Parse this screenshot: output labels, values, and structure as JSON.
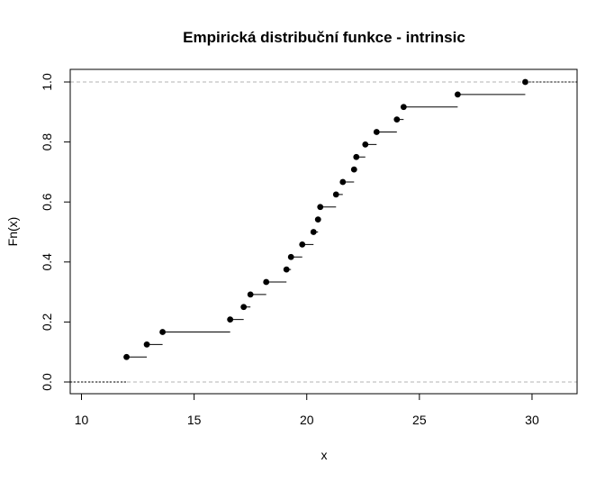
{
  "chart_data": {
    "type": "step",
    "title": "Empirická distribuční funkce - intrinsic",
    "xlabel": "x",
    "ylabel": "Fn(x)",
    "xlim": [
      9.5,
      32
    ],
    "ylim": [
      0,
      1
    ],
    "x_ticks": [
      "10",
      "15",
      "20",
      "25",
      "30"
    ],
    "y_ticks": [
      "0.0",
      "0.2",
      "0.4",
      "0.6",
      "0.8",
      "1.0"
    ],
    "reference_lines": [
      0,
      1
    ],
    "points": [
      {
        "x": 12.0,
        "y": 0.0833
      },
      {
        "x": 12.9,
        "y": 0.125
      },
      {
        "x": 13.6,
        "y": 0.1667
      },
      {
        "x": 16.6,
        "y": 0.2083
      },
      {
        "x": 17.2,
        "y": 0.25
      },
      {
        "x": 17.5,
        "y": 0.2917
      },
      {
        "x": 18.2,
        "y": 0.3333
      },
      {
        "x": 19.1,
        "y": 0.375
      },
      {
        "x": 19.3,
        "y": 0.4167
      },
      {
        "x": 19.8,
        "y": 0.4583
      },
      {
        "x": 20.3,
        "y": 0.5
      },
      {
        "x": 20.5,
        "y": 0.5417
      },
      {
        "x": 20.6,
        "y": 0.5833
      },
      {
        "x": 21.3,
        "y": 0.625
      },
      {
        "x": 21.6,
        "y": 0.6667
      },
      {
        "x": 22.1,
        "y": 0.7083
      },
      {
        "x": 22.2,
        "y": 0.75
      },
      {
        "x": 22.6,
        "y": 0.7917
      },
      {
        "x": 23.1,
        "y": 0.8333
      },
      {
        "x": 24.0,
        "y": 0.875
      },
      {
        "x": 24.3,
        "y": 0.9167
      },
      {
        "x": 26.7,
        "y": 0.9583
      },
      {
        "x": 29.7,
        "y": 1.0
      }
    ]
  }
}
